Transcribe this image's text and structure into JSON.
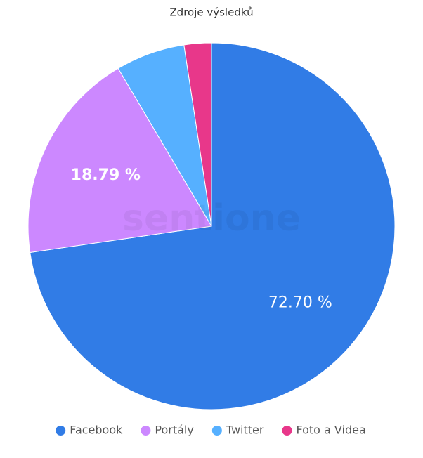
{
  "chart_data": {
    "type": "pie",
    "title": "Zdroje výsledků",
    "watermark": "sentione",
    "categories": [
      "Facebook",
      "Portály",
      "Twitter",
      "Foto a Videa"
    ],
    "values": [
      72.7,
      18.79,
      6.1,
      2.4
    ],
    "value_labels": [
      "72.70 %",
      "18.79 %",
      null,
      null
    ],
    "colors": [
      "#317ce6",
      "#cc88ff",
      "#56b0ff",
      "#e8378a"
    ],
    "legend": "bottom"
  }
}
